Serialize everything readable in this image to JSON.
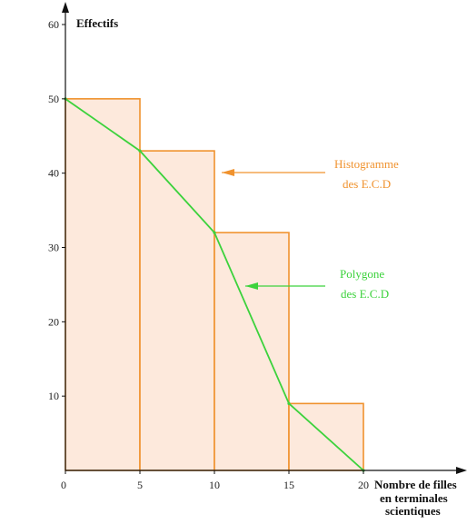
{
  "chart_data": {
    "type": "bar",
    "title": "",
    "ylabel": "Effectifs",
    "xlabel_lines": [
      "Nombre de filles",
      "en terminales",
      "scientiques"
    ],
    "xlim": [
      0,
      20
    ],
    "ylim": [
      0,
      60
    ],
    "x_ticks": [
      0,
      5,
      10,
      15,
      20
    ],
    "y_ticks": [
      10,
      20,
      30,
      40,
      50,
      60
    ],
    "histogram": {
      "name_lines": [
        "Histogramme",
        "des E.C.D"
      ],
      "bins": [
        {
          "from": 0,
          "to": 5,
          "value": 50
        },
        {
          "from": 5,
          "to": 10,
          "value": 43
        },
        {
          "from": 10,
          "to": 15,
          "value": 32
        },
        {
          "from": 15,
          "to": 20,
          "value": 9
        }
      ]
    },
    "polygon": {
      "name_lines": [
        "Polygone",
        "des E.C.D"
      ],
      "points": [
        {
          "x": 0,
          "y": 50
        },
        {
          "x": 5,
          "y": 43
        },
        {
          "x": 10,
          "y": 32
        },
        {
          "x": 15,
          "y": 9
        },
        {
          "x": 20,
          "y": 0
        }
      ]
    },
    "colors": {
      "histogram_stroke": "#f0922e",
      "histogram_fill": "#fde9dc",
      "polygon": "#3cd23c",
      "axis": "#111111"
    }
  }
}
